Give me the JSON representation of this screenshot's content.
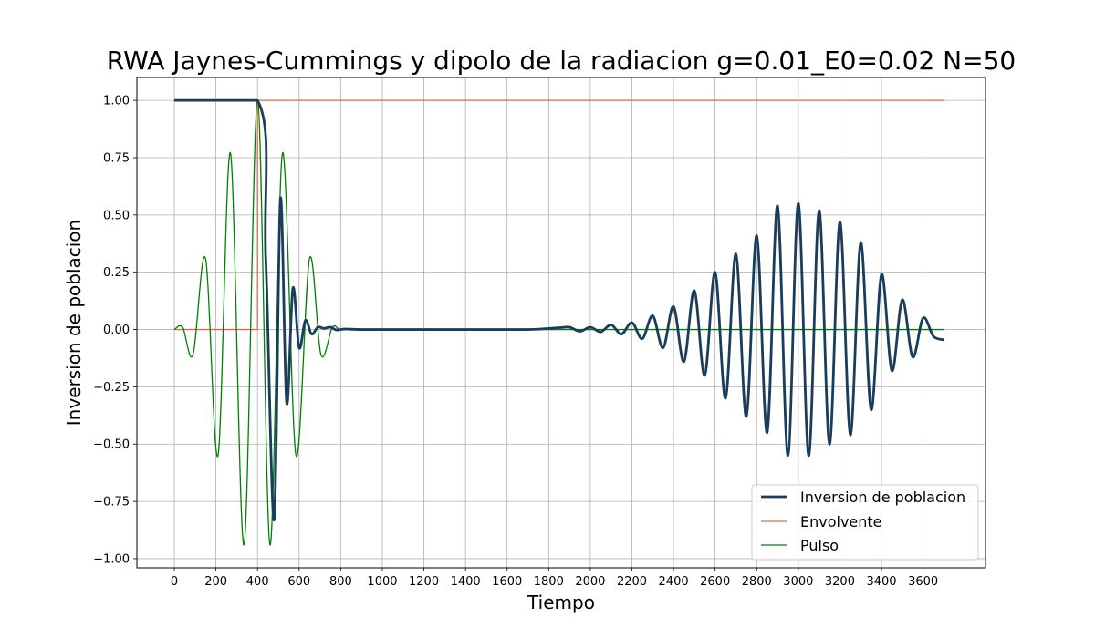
{
  "chart_data": {
    "type": "line",
    "title": "RWA Jaynes-Cummings y dipolo de la radiacion g=0.01_E0=0.02 N=50",
    "xlabel": "Tiempo",
    "ylabel": "Inversion de poblacion",
    "xlim": [
      -180,
      3900
    ],
    "ylim": [
      -1.04,
      1.1
    ],
    "xticks": [
      0,
      200,
      400,
      600,
      800,
      1000,
      1200,
      1400,
      1600,
      1800,
      2000,
      2200,
      2400,
      2600,
      2800,
      3000,
      3200,
      3400,
      3600
    ],
    "xtick_labels": [
      "0",
      "200",
      "400",
      "600",
      "800",
      "1000",
      "1200",
      "1400",
      "1600",
      "1800",
      "2000",
      "2200",
      "2400",
      "2600",
      "2800",
      "3000",
      "3200",
      "3400",
      "3600"
    ],
    "yticks": [
      -1.0,
      -0.75,
      -0.5,
      -0.25,
      0.0,
      0.25,
      0.5,
      0.75,
      1.0
    ],
    "ytick_labels": [
      "−1.00",
      "−0.75",
      "−0.50",
      "−0.25",
      "0.00",
      "0.25",
      "0.50",
      "0.75",
      "1.00"
    ],
    "grid": true,
    "legend_position": "lower-right",
    "series": [
      {
        "name": "Inversion de poblacion",
        "color": "#1a3d5c",
        "width": 2.8,
        "x": [
          0,
          400,
          440,
          480,
          510,
          540,
          570,
          600,
          630,
          660,
          690,
          720,
          750,
          780,
          820,
          900,
          1100,
          1400,
          1700,
          1850,
          1900,
          1950,
          2000,
          2050,
          2100,
          2150,
          2200,
          2250,
          2300,
          2350,
          2400,
          2450,
          2500,
          2550,
          2600,
          2650,
          2700,
          2750,
          2800,
          2850,
          2900,
          2950,
          3000,
          3050,
          3100,
          3150,
          3200,
          3250,
          3300,
          3350,
          3400,
          3450,
          3500,
          3550,
          3600,
          3650,
          3700
        ],
        "y": [
          1.0,
          1.0,
          0.3,
          -0.83,
          0.57,
          -0.32,
          0.18,
          -0.08,
          0.04,
          -0.02,
          0.01,
          0.005,
          0.01,
          -0.002,
          0.002,
          0.0,
          0.0,
          0.0,
          0.0,
          0.008,
          0.01,
          -0.008,
          0.01,
          -0.01,
          0.02,
          -0.02,
          0.03,
          -0.04,
          0.06,
          -0.08,
          0.1,
          -0.14,
          0.17,
          -0.2,
          0.25,
          -0.3,
          0.33,
          -0.38,
          0.41,
          -0.45,
          0.54,
          -0.55,
          0.55,
          -0.55,
          0.52,
          -0.5,
          0.47,
          -0.46,
          0.38,
          -0.35,
          0.24,
          -0.18,
          0.13,
          -0.12,
          0.05,
          -0.03,
          -0.045
        ]
      },
      {
        "name": "Envolvente",
        "color": "#e06a4e",
        "width": 1.3,
        "x": [
          0,
          400,
          400,
          3700
        ],
        "y": [
          0.0,
          0.0,
          1.0,
          1.0
        ]
      },
      {
        "name": "Pulso",
        "color": "#008000",
        "width": 1.3,
        "x": [
          0,
          40,
          90,
          150,
          210,
          270,
          335,
          400,
          460,
          520,
          585,
          650,
          705,
          760,
          800,
          900,
          3700
        ],
        "y": [
          0.0,
          0.01,
          -0.11,
          0.31,
          -0.55,
          0.77,
          -0.94,
          1.0,
          -0.94,
          0.77,
          -0.55,
          0.31,
          -0.11,
          0.01,
          0.0,
          0.0,
          0.0
        ]
      }
    ]
  }
}
